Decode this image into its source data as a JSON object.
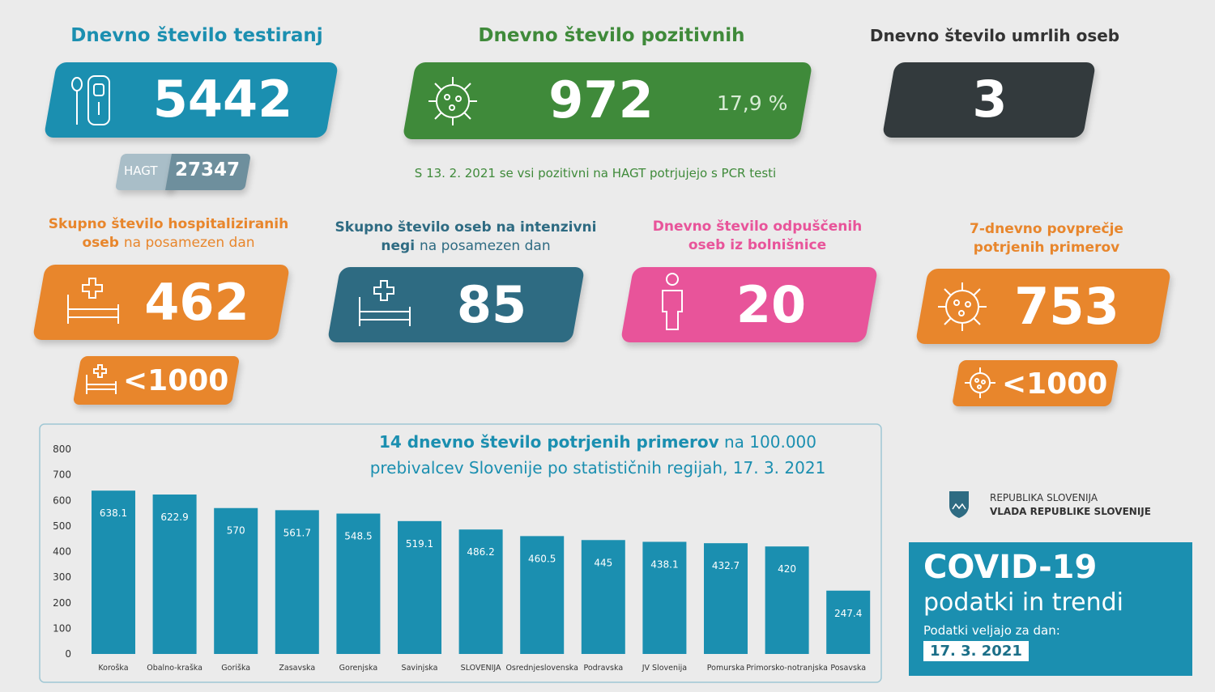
{
  "tests": {
    "title": "Dnevno število testiranj",
    "value": 5442,
    "hagt_label": "HAGT",
    "hagt_value": 27347
  },
  "positive": {
    "title": "Dnevno število pozitivnih",
    "value": 972,
    "share": "17,9 %",
    "note": "S 13. 2. 2021 se vsi pozitivni na HAGT potrjujejo s PCR testi"
  },
  "deaths": {
    "title": "Dnevno število umrlih oseb",
    "value": 3
  },
  "hospitalized": {
    "title_bold_1": "Skupno število hospitaliziranih",
    "title_bold_2": "oseb",
    "title_light": "na posamezen dan",
    "value": 462,
    "limit": "<1000"
  },
  "icu": {
    "title_bold_1": "Skupno število oseb na intenzivni",
    "title_bold_2": "negi",
    "title_light": "na posamezen dan",
    "value": 85
  },
  "discharged": {
    "title_1": "Dnevno število odpuščenih",
    "title_2": "oseb iz bolnišnice",
    "value": 20
  },
  "average": {
    "title_1": "7-dnevno povprečje",
    "title_2": "potrjenih primerov",
    "value": 753,
    "limit": "<1000"
  },
  "chart_data": {
    "type": "bar",
    "title_bold": "14 dnevno število potrjenih primerov",
    "title_rest_1": "na 100.000",
    "title_rest_2": "prebivalcev Slovenije po statističnih regijah, 17. 3. 2021",
    "categories": [
      "Koroška",
      "Obalno-kraška",
      "Goriška",
      "Zasavska",
      "Gorenjska",
      "Savinjska",
      "SLOVENIJA",
      "Osrednjeslovenska",
      "Podravska",
      "JV Slovenija",
      "Pomurska",
      "Primorsko-notranjska",
      "Posavska"
    ],
    "values": [
      638.1,
      622.9,
      570,
      561.7,
      548.5,
      519.1,
      486.2,
      460.5,
      445,
      438.1,
      432.7,
      420,
      247.4
    ],
    "color": "#1b8fb0",
    "ylim": [
      0,
      800
    ],
    "yticks": [
      0,
      100,
      200,
      300,
      400,
      500,
      600,
      700,
      800
    ]
  },
  "footer": {
    "gov_1": "REPUBLIKA SLOVENIJA",
    "gov_2": "VLADA REPUBLIKE SLOVENIJE",
    "covid": "COVID-19",
    "subtitle": "podatki in trendi",
    "valid": "Podatki veljajo za dan:",
    "date": "17. 3. 2021"
  }
}
